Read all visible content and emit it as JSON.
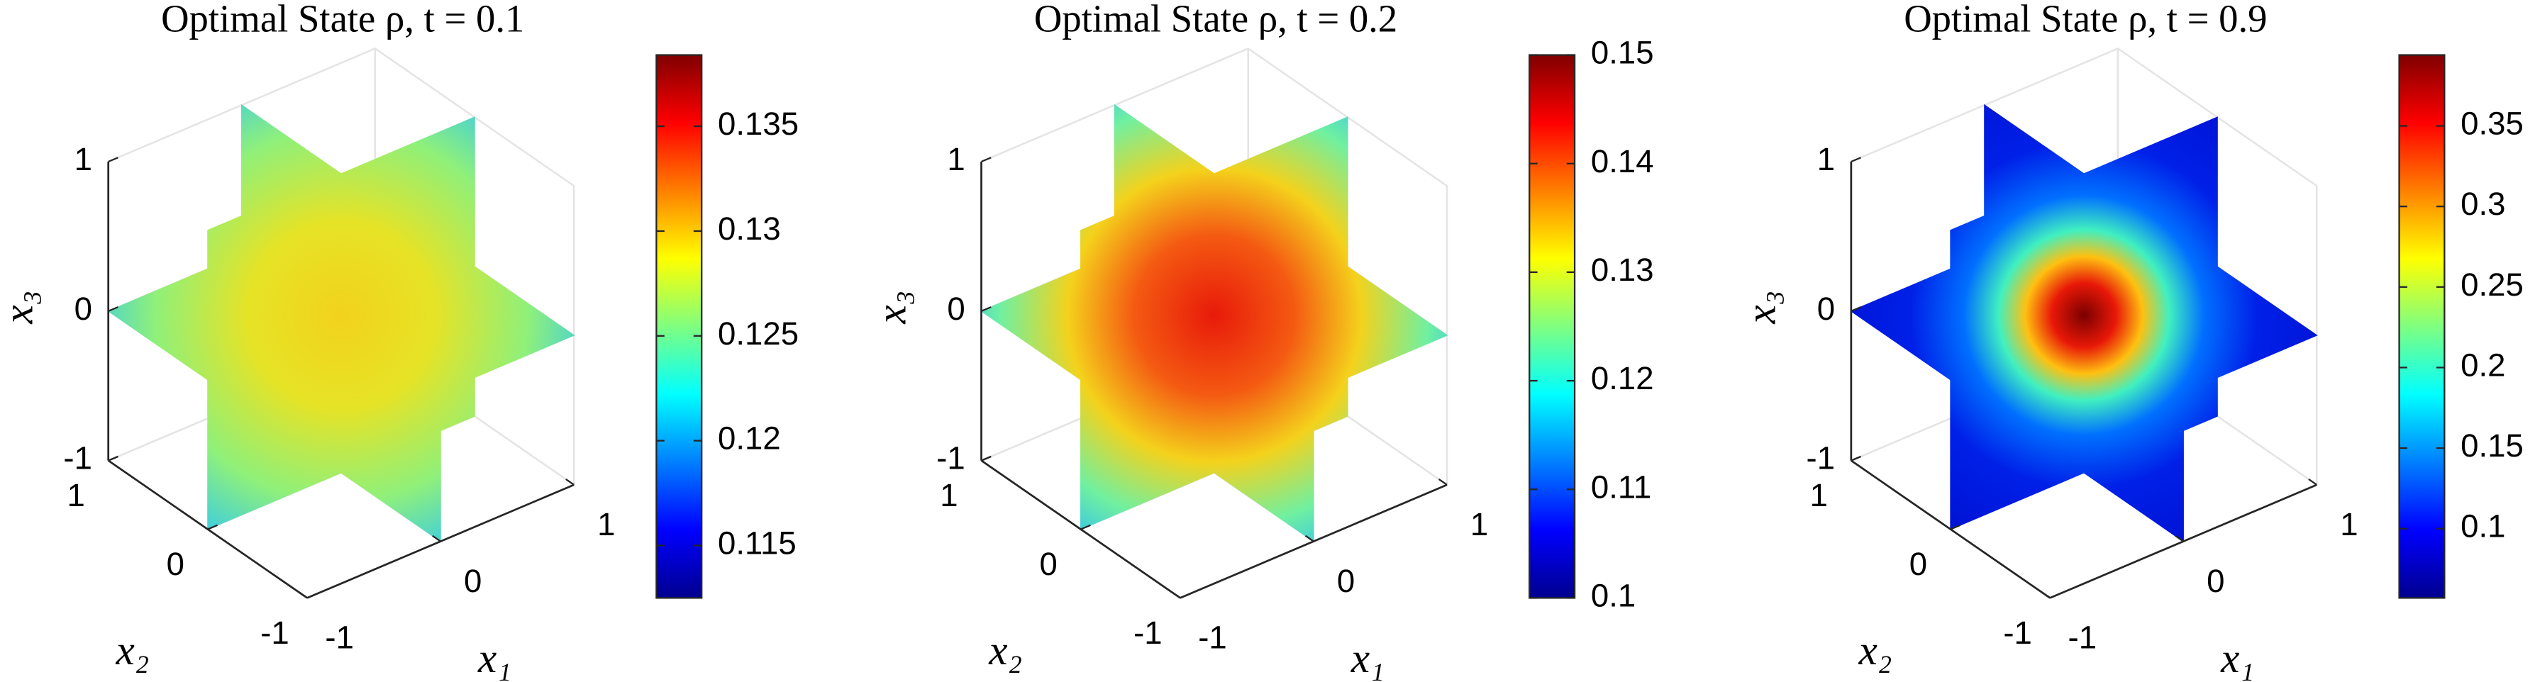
{
  "chart_data": [
    {
      "type": "slice3d",
      "title": "Optimal State ρ, t = 0.1",
      "xlabel": "x₁",
      "ylabel": "x₂",
      "zlabel": "x₃",
      "xlim": [
        -1,
        1
      ],
      "ylim": [
        -1,
        1
      ],
      "zlim": [
        -1,
        1
      ],
      "xticks": [
        -1,
        0,
        1
      ],
      "yticks": [
        -1,
        0,
        1
      ],
      "zticks": [
        -1,
        0,
        1
      ],
      "colormap": "jet",
      "clim": [
        0.1125,
        0.1384
      ],
      "cticks": [
        0.115,
        0.12,
        0.125,
        0.13,
        0.135
      ],
      "grid": true
    },
    {
      "type": "slice3d",
      "title": "Optimal State ρ, t = 0.2",
      "xlabel": "x₁",
      "ylabel": "x₂",
      "zlabel": "x₃",
      "xlim": [
        -1,
        1
      ],
      "ylim": [
        -1,
        1
      ],
      "zlim": [
        -1,
        1
      ],
      "xticks": [
        -1,
        0,
        1
      ],
      "yticks": [
        -1,
        0,
        1
      ],
      "zticks": [
        -1,
        0,
        1
      ],
      "colormap": "jet",
      "clim": [
        0.1,
        0.15
      ],
      "cticks": [
        0.1,
        0.11,
        0.12,
        0.13,
        0.14,
        0.15
      ],
      "grid": true
    },
    {
      "type": "slice3d",
      "title": "Optimal State ρ, t = 0.9",
      "xlabel": "x₁",
      "ylabel": "x₂",
      "zlabel": "x₃",
      "xlim": [
        -1,
        1
      ],
      "ylim": [
        -1,
        1
      ],
      "zlim": [
        -1,
        1
      ],
      "xticks": [
        -1,
        0,
        1
      ],
      "yticks": [
        -1,
        0,
        1
      ],
      "zticks": [
        -1,
        0,
        1
      ],
      "colormap": "jet",
      "clim": [
        0.057,
        0.394
      ],
      "cticks": [
        0.1,
        0.15,
        0.2,
        0.25,
        0.3,
        0.35
      ],
      "grid": true
    }
  ]
}
